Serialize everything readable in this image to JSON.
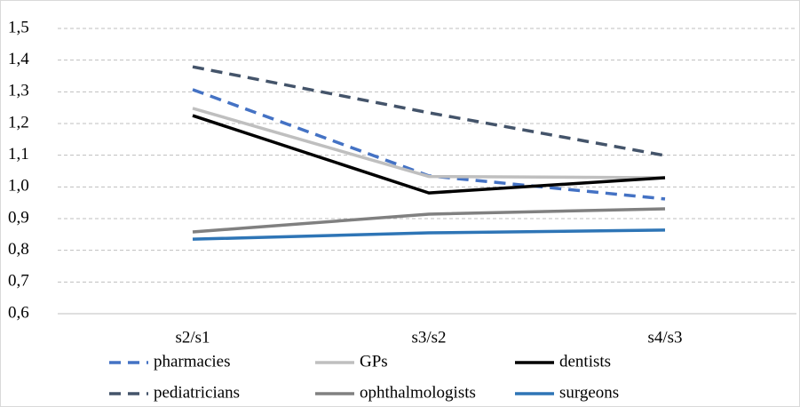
{
  "chart_data": {
    "type": "line",
    "categories": [
      "s2/s1",
      "s3/s2",
      "s4/s3"
    ],
    "series": [
      {
        "name": "pharmacies",
        "color": "#4472c4",
        "dashed": true,
        "values": [
          1.307,
          1.035,
          0.962
        ]
      },
      {
        "name": "GPs",
        "color": "#bfbfbf",
        "dashed": false,
        "values": [
          1.248,
          1.033,
          1.029
        ]
      },
      {
        "name": "dentists",
        "color": "#000000",
        "dashed": false,
        "values": [
          1.225,
          0.981,
          1.029
        ]
      },
      {
        "name": "pediatricians",
        "color": "#44546a",
        "dashed": true,
        "values": [
          1.379,
          1.234,
          1.099
        ]
      },
      {
        "name": "ophthalmologists",
        "color": "#808080",
        "dashed": false,
        "values": [
          0.858,
          0.914,
          0.931
        ]
      },
      {
        "name": "surgeons",
        "color": "#2e75b6",
        "dashed": false,
        "values": [
          0.835,
          0.855,
          0.864
        ]
      }
    ],
    "ylim": [
      0.6,
      1.5
    ],
    "yticks": [
      {
        "value": 0.6,
        "label": "0,6"
      },
      {
        "value": 0.7,
        "label": "0,7"
      },
      {
        "value": 0.8,
        "label": "0,8"
      },
      {
        "value": 0.9,
        "label": "0,9"
      },
      {
        "value": 1.0,
        "label": "1,0"
      },
      {
        "value": 1.1,
        "label": "1,1"
      },
      {
        "value": 1.2,
        "label": "1,2"
      },
      {
        "value": 1.3,
        "label": "1,3"
      },
      {
        "value": 1.4,
        "label": "1,4"
      },
      {
        "value": 1.5,
        "label": "1,5"
      }
    ],
    "grid": true,
    "legend": "bottom"
  }
}
